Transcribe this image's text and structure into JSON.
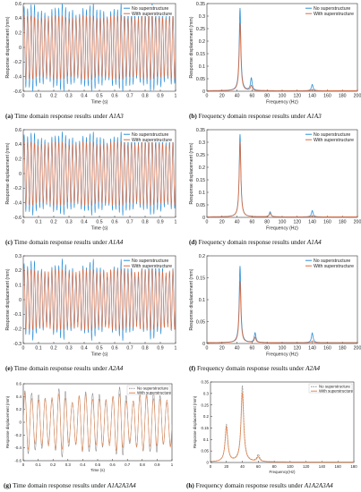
{
  "colors": {
    "no_superstructure": "#2e8fd6",
    "with_superstructure": "#e2693a",
    "no_superstructure_g": "#8c8c8c",
    "with_superstructure_g": "#e58a55",
    "axis": "#333333"
  },
  "captions": [
    {
      "letter": "(a)",
      "text": "Time domain response results under ",
      "cond": "A1A3"
    },
    {
      "letter": "(b)",
      "text": "Frequency domain response results under ",
      "cond": "A1A3"
    },
    {
      "letter": "(c)",
      "text": "Time domain response results under ",
      "cond": "A1A4"
    },
    {
      "letter": "(d)",
      "text": "Frequency domain response results under ",
      "cond": "A1A4"
    },
    {
      "letter": "(e)",
      "text": "Time domain response results under ",
      "cond": "A2A4"
    },
    {
      "letter": "(f)",
      "text": "Frequency domain response results under ",
      "cond": "A2A4"
    },
    {
      "letter": "(g)",
      "text": "Time domain response results under ",
      "cond": "A1A2A3A4"
    },
    {
      "letter": "(h)",
      "text": "Frequency domain response results under ",
      "cond": "A1A2A3A4"
    }
  ],
  "chart_data": [
    {
      "id": "a",
      "type": "line",
      "xlabel": "Time (s)",
      "ylabel": "Response displacement (mm)",
      "xlim": [
        0,
        1
      ],
      "ylim": [
        -0.6,
        0.6
      ],
      "xticks": [
        "0",
        "0.1",
        "0.2",
        "0.3",
        "0.4",
        "0.5",
        "0.6",
        "0.7",
        "0.8",
        "0.9",
        "1"
      ],
      "yticks": [
        "-0.6",
        "-0.4",
        "-0.2",
        "0",
        "0.2",
        "0.4",
        "0.6"
      ],
      "legend": "top-right",
      "series": [
        {
          "name": "No superstructure",
          "cycles": 44,
          "amplitude": 0.52,
          "mod_amp": 0.06
        },
        {
          "name": "With superstructure",
          "cycles": 44,
          "amplitude": 0.42,
          "mod_amp": 0.02
        }
      ]
    },
    {
      "id": "b",
      "type": "line",
      "xlabel": "Frequency (Hz)",
      "ylabel": "Response displacement (mm)",
      "xlim": [
        0,
        200
      ],
      "ylim": [
        0,
        0.35
      ],
      "xticks": [
        "0",
        "20",
        "40",
        "60",
        "80",
        "100",
        "120",
        "140",
        "160",
        "180",
        "200"
      ],
      "yticks": [
        "0",
        "0.05",
        "0.1",
        "0.15",
        "0.2",
        "0.25",
        "0.3",
        "0.35"
      ],
      "legend": "top-right",
      "series": [
        {
          "name": "No superstructure",
          "peaks": [
            {
              "x": 44,
              "y": 0.33
            },
            {
              "x": 59,
              "y": 0.05
            },
            {
              "x": 140,
              "y": 0.025
            }
          ]
        },
        {
          "name": "With superstructure",
          "peaks": [
            {
              "x": 44,
              "y": 0.27
            },
            {
              "x": 59,
              "y": 0.02
            },
            {
              "x": 140,
              "y": 0.005
            }
          ]
        }
      ]
    },
    {
      "id": "c",
      "type": "line",
      "xlabel": "Time (s)",
      "ylabel": "Response displacement (mm)",
      "xlim": [
        0,
        1
      ],
      "ylim": [
        -0.6,
        0.6
      ],
      "xticks": [
        "0",
        "0.1",
        "0.2",
        "0.3",
        "0.4",
        "0.5",
        "0.6",
        "0.7",
        "0.8",
        "0.9",
        "1"
      ],
      "yticks": [
        "-0.6",
        "-0.4",
        "-0.2",
        "0",
        "0.2",
        "0.4",
        "0.6"
      ],
      "legend": "top-right",
      "series": [
        {
          "name": "No superstructure",
          "cycles": 44,
          "amplitude": 0.5,
          "mod_amp": 0.05
        },
        {
          "name": "With superstructure",
          "cycles": 44,
          "amplitude": 0.42,
          "mod_amp": 0.02
        }
      ]
    },
    {
      "id": "d",
      "type": "line",
      "xlabel": "Frequency (Hz)",
      "ylabel": "Response displacement (mm)",
      "xlim": [
        0,
        200
      ],
      "ylim": [
        0,
        0.35
      ],
      "xticks": [
        "0",
        "20",
        "40",
        "60",
        "80",
        "100",
        "120",
        "140",
        "160",
        "180",
        "200"
      ],
      "yticks": [
        "0",
        "0.05",
        "0.1",
        "0.15",
        "0.2",
        "0.25",
        "0.3",
        "0.35"
      ],
      "legend": "top-right",
      "series": [
        {
          "name": "No superstructure",
          "peaks": [
            {
              "x": 44,
              "y": 0.33
            },
            {
              "x": 84,
              "y": 0.02
            },
            {
              "x": 140,
              "y": 0.025
            }
          ]
        },
        {
          "name": "With superstructure",
          "peaks": [
            {
              "x": 44,
              "y": 0.3
            },
            {
              "x": 84,
              "y": 0.015
            },
            {
              "x": 140,
              "y": 0.005
            }
          ]
        }
      ]
    },
    {
      "id": "e",
      "type": "line",
      "xlabel": "Time (s)",
      "ylabel": "Response displacement (mm)",
      "xlim": [
        0,
        1
      ],
      "ylim": [
        -0.3,
        0.3
      ],
      "xticks": [
        "0",
        "0.1",
        "0.2",
        "0.3",
        "0.4",
        "0.5",
        "0.6",
        "0.7",
        "0.8",
        "0.9",
        "1"
      ],
      "yticks": [
        "-0.3",
        "-0.2",
        "-0.1",
        "0",
        "0.1",
        "0.2",
        "0.3"
      ],
      "legend": "top-right",
      "series": [
        {
          "name": "No superstructure",
          "cycles": 44,
          "amplitude": 0.22,
          "mod_amp": 0.04
        },
        {
          "name": "With superstructure",
          "cycles": 44,
          "amplitude": 0.2,
          "mod_amp": 0.01
        }
      ]
    },
    {
      "id": "f",
      "type": "line",
      "xlabel": "Frequency (Hz)",
      "ylabel": "Response displacement (mm)",
      "xlim": [
        0,
        200
      ],
      "ylim": [
        0,
        0.2
      ],
      "xticks": [
        "0",
        "20",
        "40",
        "60",
        "80",
        "100",
        "120",
        "140",
        "160",
        "180",
        "200"
      ],
      "yticks": [
        "0",
        "0.05",
        "0.1",
        "0.15",
        "0.2"
      ],
      "legend": "top-right",
      "series": [
        {
          "name": "No superstructure",
          "peaks": [
            {
              "x": 44,
              "y": 0.175
            },
            {
              "x": 64,
              "y": 0.022
            },
            {
              "x": 140,
              "y": 0.022
            }
          ]
        },
        {
          "name": "With superstructure",
          "peaks": [
            {
              "x": 44,
              "y": 0.14
            },
            {
              "x": 64,
              "y": 0.012
            },
            {
              "x": 140,
              "y": 0.004
            }
          ]
        }
      ]
    },
    {
      "id": "g",
      "type": "line",
      "xlabel": "Time (s)",
      "ylabel": "Response displacement (mm)",
      "xlim": [
        0,
        1
      ],
      "ylim": [
        -0.6,
        0.6
      ],
      "xticks": [
        "0",
        "0.1",
        "0.2",
        "0.3",
        "0.4",
        "0.5",
        "0.6",
        "0.7",
        "0.8",
        "0.9",
        "1"
      ],
      "yticks": [
        "-0.6",
        "-0.4",
        "-0.2",
        "0",
        "0.2",
        "0.4",
        "0.6"
      ],
      "legend": "top-right",
      "series": [
        {
          "name": "No superstructure",
          "cycles": 22,
          "amplitude": 0.42,
          "mod_amp": 0.08
        },
        {
          "name": "With superstructure",
          "cycles": 22,
          "amplitude": 0.38,
          "mod_amp": 0.05
        }
      ]
    },
    {
      "id": "h",
      "type": "line",
      "xlabel": "Frequency(Hz)",
      "ylabel": "Response displacement (mm)",
      "xlim": [
        0,
        180
      ],
      "ylim": [
        0,
        0.35
      ],
      "xticks": [
        "0",
        "20",
        "40",
        "60",
        "80",
        "100",
        "120",
        "140",
        "160",
        "180"
      ],
      "yticks": [
        "0",
        "0.05",
        "0.1",
        "0.15",
        "0.2",
        "0.25",
        "0.3",
        "0.35"
      ],
      "legend": "top-right",
      "series": [
        {
          "name": "No superstructure",
          "peaks": [
            {
              "x": 40,
              "y": 0.33
            },
            {
              "x": 20,
              "y": 0.16
            },
            {
              "x": 60,
              "y": 0.03
            }
          ]
        },
        {
          "name": "With superstructure",
          "peaks": [
            {
              "x": 40,
              "y": 0.3
            },
            {
              "x": 20,
              "y": 0.15
            },
            {
              "x": 60,
              "y": 0.02
            }
          ]
        }
      ]
    }
  ]
}
